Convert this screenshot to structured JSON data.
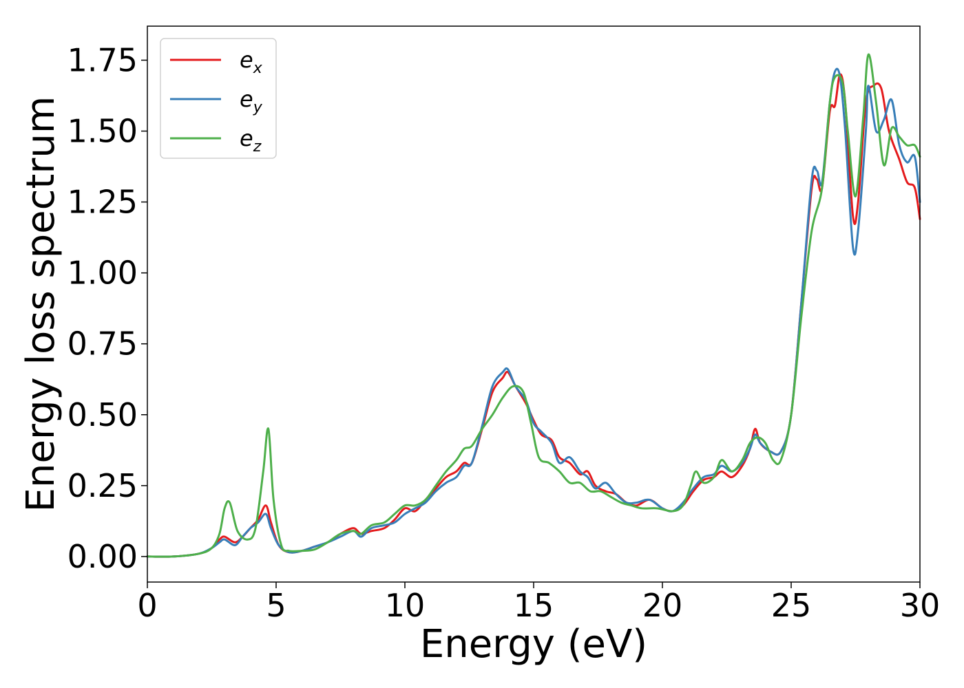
{
  "chart_data": {
    "type": "line",
    "title": "",
    "xlabel": "Energy (eV)",
    "ylabel": "Energy loss spectrum",
    "xlim": [
      0,
      30
    ],
    "ylim": [
      -0.09,
      1.87
    ],
    "xticks": [
      0,
      5,
      10,
      15,
      20,
      25,
      30
    ],
    "yticks": [
      0.0,
      0.25,
      0.5,
      0.75,
      1.0,
      1.25,
      1.5,
      1.75
    ],
    "xtick_labels": [
      "0",
      "5",
      "10",
      "15",
      "20",
      "25",
      "30"
    ],
    "ytick_labels": [
      "0.00",
      "0.25",
      "0.50",
      "0.75",
      "1.00",
      "1.25",
      "1.50",
      "1.75"
    ],
    "grid": false,
    "legend_position": "top-left",
    "series": [
      {
        "name": "e_x",
        "label_main": "e",
        "label_sub": "x",
        "color": "#e41a1c",
        "points": [
          [
            0,
            0.0
          ],
          [
            1,
            0.0
          ],
          [
            2,
            0.01
          ],
          [
            2.5,
            0.03
          ],
          [
            2.8,
            0.06
          ],
          [
            3.0,
            0.07
          ],
          [
            3.4,
            0.05
          ],
          [
            3.7,
            0.07
          ],
          [
            4.0,
            0.1
          ],
          [
            4.3,
            0.13
          ],
          [
            4.6,
            0.18
          ],
          [
            4.8,
            0.12
          ],
          [
            5.1,
            0.04
          ],
          [
            5.5,
            0.015
          ],
          [
            6.0,
            0.02
          ],
          [
            6.5,
            0.035
          ],
          [
            7.0,
            0.05
          ],
          [
            7.5,
            0.08
          ],
          [
            8.0,
            0.1
          ],
          [
            8.3,
            0.08
          ],
          [
            8.7,
            0.09
          ],
          [
            9.2,
            0.1
          ],
          [
            9.6,
            0.13
          ],
          [
            10.0,
            0.17
          ],
          [
            10.4,
            0.16
          ],
          [
            10.8,
            0.2
          ],
          [
            11.2,
            0.24
          ],
          [
            11.6,
            0.28
          ],
          [
            12.0,
            0.3
          ],
          [
            12.3,
            0.33
          ],
          [
            12.6,
            0.33
          ],
          [
            13.0,
            0.45
          ],
          [
            13.4,
            0.58
          ],
          [
            13.8,
            0.63
          ],
          [
            14.0,
            0.65
          ],
          [
            14.3,
            0.6
          ],
          [
            14.7,
            0.54
          ],
          [
            15.0,
            0.48
          ],
          [
            15.3,
            0.43
          ],
          [
            15.7,
            0.41
          ],
          [
            16.0,
            0.35
          ],
          [
            16.4,
            0.33
          ],
          [
            16.8,
            0.29
          ],
          [
            17.1,
            0.3
          ],
          [
            17.4,
            0.25
          ],
          [
            17.8,
            0.23
          ],
          [
            18.2,
            0.22
          ],
          [
            18.6,
            0.19
          ],
          [
            19.0,
            0.18
          ],
          [
            19.5,
            0.2
          ],
          [
            20.0,
            0.17
          ],
          [
            20.4,
            0.16
          ],
          [
            20.8,
            0.18
          ],
          [
            21.2,
            0.23
          ],
          [
            21.6,
            0.27
          ],
          [
            22.0,
            0.28
          ],
          [
            22.3,
            0.3
          ],
          [
            22.7,
            0.28
          ],
          [
            23.1,
            0.32
          ],
          [
            23.4,
            0.38
          ],
          [
            23.6,
            0.45
          ],
          [
            23.8,
            0.4
          ],
          [
            24.2,
            0.37
          ],
          [
            24.6,
            0.37
          ],
          [
            25.0,
            0.5
          ],
          [
            25.4,
            0.9
          ],
          [
            25.8,
            1.3
          ],
          [
            26.0,
            1.33
          ],
          [
            26.2,
            1.3
          ],
          [
            26.5,
            1.57
          ],
          [
            26.7,
            1.59
          ],
          [
            26.9,
            1.7
          ],
          [
            27.1,
            1.6
          ],
          [
            27.4,
            1.2
          ],
          [
            27.6,
            1.25
          ],
          [
            27.9,
            1.6
          ],
          [
            28.2,
            1.66
          ],
          [
            28.5,
            1.65
          ],
          [
            28.8,
            1.5
          ],
          [
            29.2,
            1.4
          ],
          [
            29.5,
            1.32
          ],
          [
            29.8,
            1.3
          ],
          [
            30.0,
            1.19
          ]
        ]
      },
      {
        "name": "e_y",
        "label_main": "e",
        "label_sub": "y",
        "color": "#377eb8",
        "points": [
          [
            0,
            0.0
          ],
          [
            1,
            0.0
          ],
          [
            2,
            0.01
          ],
          [
            2.5,
            0.03
          ],
          [
            2.8,
            0.05
          ],
          [
            3.0,
            0.06
          ],
          [
            3.4,
            0.04
          ],
          [
            3.7,
            0.07
          ],
          [
            4.0,
            0.1
          ],
          [
            4.3,
            0.12
          ],
          [
            4.6,
            0.15
          ],
          [
            4.8,
            0.1
          ],
          [
            5.1,
            0.04
          ],
          [
            5.5,
            0.015
          ],
          [
            6.0,
            0.02
          ],
          [
            6.5,
            0.035
          ],
          [
            7.0,
            0.05
          ],
          [
            7.5,
            0.07
          ],
          [
            8.0,
            0.09
          ],
          [
            8.3,
            0.07
          ],
          [
            8.7,
            0.1
          ],
          [
            9.2,
            0.11
          ],
          [
            9.6,
            0.12
          ],
          [
            10.0,
            0.15
          ],
          [
            10.4,
            0.17
          ],
          [
            10.8,
            0.19
          ],
          [
            11.2,
            0.23
          ],
          [
            11.6,
            0.26
          ],
          [
            12.0,
            0.28
          ],
          [
            12.3,
            0.32
          ],
          [
            12.6,
            0.33
          ],
          [
            13.0,
            0.46
          ],
          [
            13.4,
            0.6
          ],
          [
            13.8,
            0.65
          ],
          [
            14.0,
            0.66
          ],
          [
            14.3,
            0.6
          ],
          [
            14.7,
            0.55
          ],
          [
            15.0,
            0.47
          ],
          [
            15.3,
            0.44
          ],
          [
            15.7,
            0.4
          ],
          [
            16.0,
            0.33
          ],
          [
            16.4,
            0.35
          ],
          [
            16.8,
            0.3
          ],
          [
            17.1,
            0.28
          ],
          [
            17.4,
            0.24
          ],
          [
            17.8,
            0.26
          ],
          [
            18.2,
            0.22
          ],
          [
            18.6,
            0.19
          ],
          [
            19.0,
            0.19
          ],
          [
            19.5,
            0.2
          ],
          [
            20.0,
            0.17
          ],
          [
            20.4,
            0.16
          ],
          [
            20.8,
            0.19
          ],
          [
            21.2,
            0.24
          ],
          [
            21.6,
            0.28
          ],
          [
            22.0,
            0.29
          ],
          [
            22.3,
            0.32
          ],
          [
            22.7,
            0.3
          ],
          [
            23.1,
            0.33
          ],
          [
            23.4,
            0.38
          ],
          [
            23.6,
            0.43
          ],
          [
            23.8,
            0.4
          ],
          [
            24.2,
            0.37
          ],
          [
            24.6,
            0.37
          ],
          [
            25.0,
            0.5
          ],
          [
            25.4,
            0.9
          ],
          [
            25.8,
            1.33
          ],
          [
            26.0,
            1.36
          ],
          [
            26.2,
            1.32
          ],
          [
            26.5,
            1.6
          ],
          [
            26.7,
            1.71
          ],
          [
            26.9,
            1.69
          ],
          [
            27.1,
            1.5
          ],
          [
            27.4,
            1.09
          ],
          [
            27.6,
            1.15
          ],
          [
            27.9,
            1.5
          ],
          [
            28.0,
            1.66
          ],
          [
            28.3,
            1.5
          ],
          [
            28.6,
            1.54
          ],
          [
            28.9,
            1.61
          ],
          [
            29.2,
            1.45
          ],
          [
            29.5,
            1.39
          ],
          [
            29.8,
            1.41
          ],
          [
            30.0,
            1.25
          ]
        ]
      },
      {
        "name": "e_z",
        "label_main": "e",
        "label_sub": "z",
        "color": "#4daf4a",
        "points": [
          [
            0,
            0.0
          ],
          [
            1,
            0.0
          ],
          [
            2,
            0.01
          ],
          [
            2.5,
            0.03
          ],
          [
            2.8,
            0.08
          ],
          [
            3.0,
            0.17
          ],
          [
            3.2,
            0.19
          ],
          [
            3.5,
            0.09
          ],
          [
            3.9,
            0.06
          ],
          [
            4.2,
            0.1
          ],
          [
            4.5,
            0.3
          ],
          [
            4.7,
            0.45
          ],
          [
            4.9,
            0.2
          ],
          [
            5.2,
            0.04
          ],
          [
            5.5,
            0.02
          ],
          [
            6.0,
            0.02
          ],
          [
            6.5,
            0.025
          ],
          [
            7.0,
            0.05
          ],
          [
            7.5,
            0.08
          ],
          [
            8.0,
            0.09
          ],
          [
            8.3,
            0.08
          ],
          [
            8.7,
            0.11
          ],
          [
            9.2,
            0.12
          ],
          [
            9.6,
            0.15
          ],
          [
            10.0,
            0.18
          ],
          [
            10.4,
            0.18
          ],
          [
            10.8,
            0.2
          ],
          [
            11.2,
            0.25
          ],
          [
            11.6,
            0.3
          ],
          [
            12.0,
            0.34
          ],
          [
            12.3,
            0.38
          ],
          [
            12.6,
            0.39
          ],
          [
            13.0,
            0.45
          ],
          [
            13.4,
            0.5
          ],
          [
            13.8,
            0.56
          ],
          [
            14.2,
            0.6
          ],
          [
            14.6,
            0.58
          ],
          [
            14.9,
            0.47
          ],
          [
            15.2,
            0.35
          ],
          [
            15.6,
            0.33
          ],
          [
            16.0,
            0.3
          ],
          [
            16.4,
            0.26
          ],
          [
            16.8,
            0.26
          ],
          [
            17.2,
            0.23
          ],
          [
            17.6,
            0.23
          ],
          [
            18.0,
            0.21
          ],
          [
            18.4,
            0.19
          ],
          [
            18.8,
            0.18
          ],
          [
            19.2,
            0.17
          ],
          [
            19.8,
            0.17
          ],
          [
            20.4,
            0.16
          ],
          [
            20.8,
            0.18
          ],
          [
            21.1,
            0.25
          ],
          [
            21.3,
            0.3
          ],
          [
            21.6,
            0.26
          ],
          [
            22.0,
            0.28
          ],
          [
            22.3,
            0.34
          ],
          [
            22.7,
            0.3
          ],
          [
            23.1,
            0.34
          ],
          [
            23.4,
            0.4
          ],
          [
            23.7,
            0.42
          ],
          [
            24.0,
            0.4
          ],
          [
            24.3,
            0.34
          ],
          [
            24.6,
            0.34
          ],
          [
            25.0,
            0.5
          ],
          [
            25.4,
            0.85
          ],
          [
            25.8,
            1.15
          ],
          [
            26.2,
            1.3
          ],
          [
            26.5,
            1.6
          ],
          [
            26.7,
            1.69
          ],
          [
            27.0,
            1.67
          ],
          [
            27.2,
            1.5
          ],
          [
            27.5,
            1.27
          ],
          [
            27.8,
            1.55
          ],
          [
            28.0,
            1.77
          ],
          [
            28.3,
            1.6
          ],
          [
            28.6,
            1.38
          ],
          [
            28.9,
            1.51
          ],
          [
            29.2,
            1.48
          ],
          [
            29.5,
            1.45
          ],
          [
            29.8,
            1.45
          ],
          [
            30.0,
            1.41
          ]
        ]
      }
    ]
  }
}
